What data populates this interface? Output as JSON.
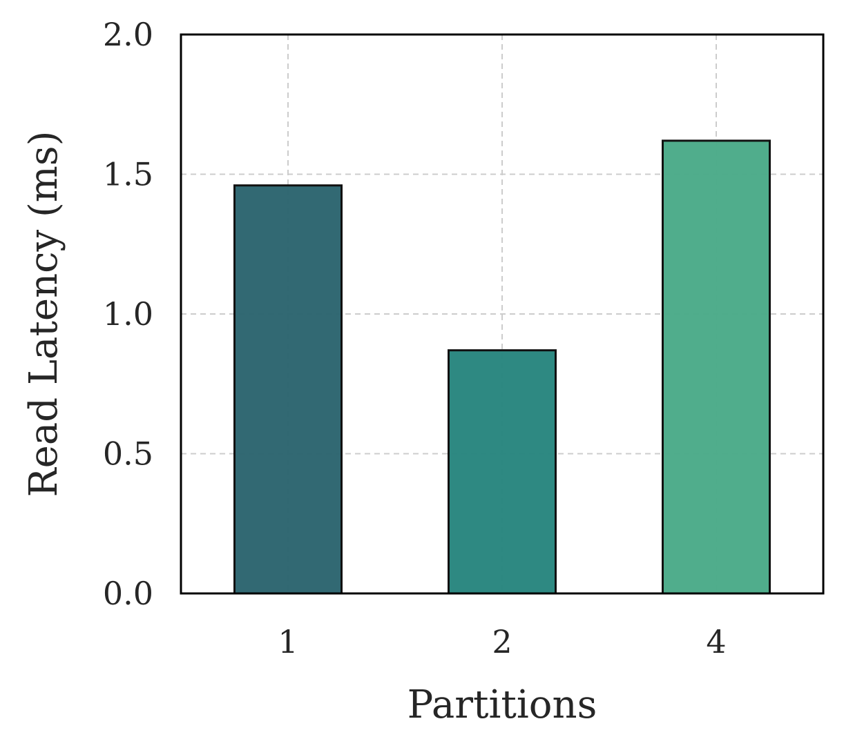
{
  "chart_data": {
    "type": "bar",
    "categories": [
      "1",
      "2",
      "4"
    ],
    "values": [
      1.46,
      0.87,
      1.62
    ],
    "colors": [
      "#2e6670",
      "#2a8780",
      "#4dab8a"
    ],
    "xlabel": "Partitions",
    "ylabel": "Read Latency (ms)",
    "ylim": [
      0,
      2.0
    ],
    "yticks": [
      "0.0",
      "0.5",
      "1.0",
      "1.5",
      "2.0"
    ],
    "grid": true,
    "legend": "none"
  }
}
